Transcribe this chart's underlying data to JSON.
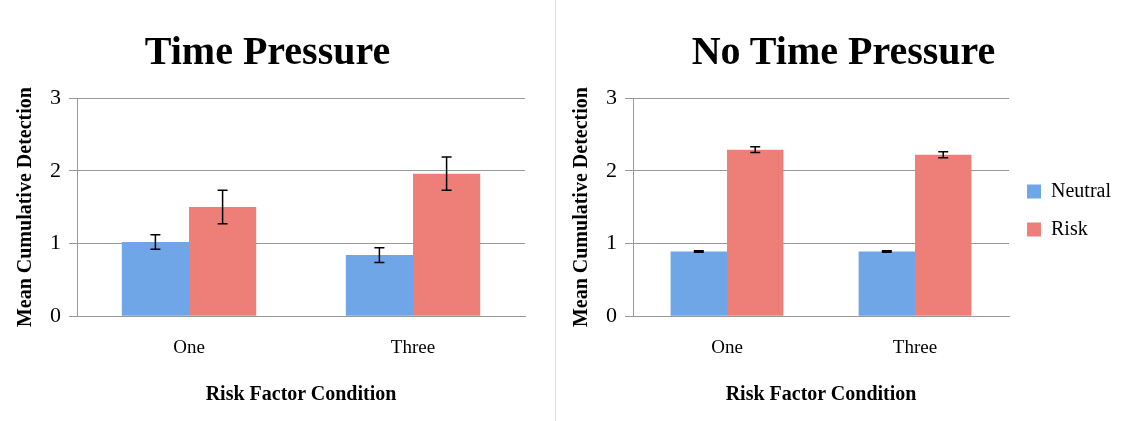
{
  "chart_data": [
    {
      "type": "bar",
      "title": "Time Pressure",
      "xlabel": "Risk Factor Condition",
      "ylabel": "Mean Cumulative Detection",
      "categories": [
        "One",
        "Three"
      ],
      "series": [
        {
          "color": "#6fa6e8",
          "values": [
            1.02,
            0.84
          ],
          "errors": [
            0.1,
            0.1
          ]
        },
        {
          "color": "#ee7f78",
          "values": [
            1.5,
            1.96
          ],
          "errors": [
            0.23,
            0.23
          ]
        }
      ],
      "ylim": [
        0,
        3
      ],
      "yticks": [
        0,
        1,
        2,
        3
      ],
      "grid": "y",
      "legend": false
    },
    {
      "type": "bar",
      "title": "No Time Pressure",
      "xlabel": "Risk Factor Condition",
      "ylabel": "Mean Cumulative Detection",
      "categories": [
        "One",
        "Three"
      ],
      "series": [
        {
          "name": "Neutral",
          "color": "#6fa6e8",
          "values": [
            0.89,
            0.89
          ],
          "errors": [
            0.01,
            0.01
          ]
        },
        {
          "name": "Risk",
          "color": "#ee7f78",
          "values": [
            2.29,
            2.22
          ],
          "errors": [
            0.04,
            0.04
          ]
        }
      ],
      "ylim": [
        0,
        3
      ],
      "yticks": [
        0,
        1,
        2,
        3
      ],
      "grid": "y",
      "legend": "right"
    }
  ]
}
